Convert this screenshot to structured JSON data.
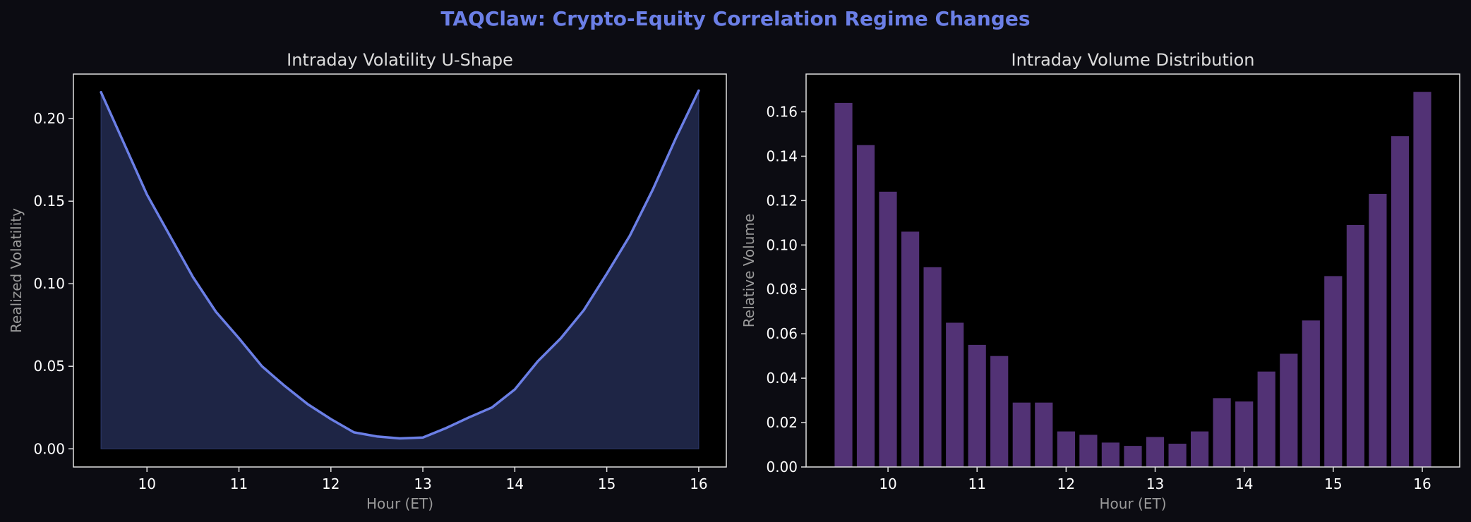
{
  "title": "TAQClaw: Crypto-Equity Correlation Regime Changes",
  "colors": {
    "figure_bg": "#0c0c12",
    "axes_bg": "#000000",
    "spine": "#e0e0e0",
    "title_accent": "#6b7fe6",
    "line": "#6b7fe6",
    "fill": "#1e2545",
    "bar": "#523275"
  },
  "chart_data": [
    {
      "type": "area",
      "title": "Intraday Volatility U-Shape",
      "xlabel": "Hour (ET)",
      "ylabel": "Realized Volatility",
      "xlim": [
        9.2,
        16.3
      ],
      "ylim": [
        -0.011,
        0.227
      ],
      "xticks": [
        10,
        11,
        12,
        13,
        14,
        15,
        16
      ],
      "yticks": [
        0.0,
        0.05,
        0.1,
        0.15,
        0.2
      ],
      "x": [
        9.5,
        9.75,
        10.0,
        10.25,
        10.5,
        10.75,
        11.0,
        11.25,
        11.5,
        11.75,
        12.0,
        12.25,
        12.5,
        12.75,
        13.0,
        13.25,
        13.5,
        13.75,
        14.0,
        14.25,
        14.5,
        14.75,
        15.0,
        15.25,
        15.5,
        15.75,
        16.0
      ],
      "values": [
        0.216,
        0.185,
        0.154,
        0.129,
        0.104,
        0.083,
        0.067,
        0.05,
        0.038,
        0.027,
        0.018,
        0.01,
        0.0075,
        0.0063,
        0.0068,
        0.0125,
        0.019,
        0.025,
        0.036,
        0.053,
        0.067,
        0.084,
        0.106,
        0.129,
        0.157,
        0.188,
        0.217
      ]
    },
    {
      "type": "bar",
      "title": "Intraday Volume Distribution",
      "xlabel": "Hour (ET)",
      "ylabel": "Relative Volume",
      "xlim": [
        9.08,
        16.42
      ],
      "ylim": [
        0.0,
        0.177
      ],
      "xticks": [
        10,
        11,
        12,
        13,
        14,
        15,
        16
      ],
      "yticks": [
        0.0,
        0.02,
        0.04,
        0.06,
        0.08,
        0.1,
        0.12,
        0.14,
        0.16
      ],
      "bar_width": 0.2,
      "x": [
        9.5,
        9.75,
        10.0,
        10.25,
        10.5,
        10.75,
        11.0,
        11.25,
        11.5,
        11.75,
        12.0,
        12.25,
        12.5,
        12.75,
        13.0,
        13.25,
        13.5,
        13.75,
        14.0,
        14.25,
        14.5,
        14.75,
        15.0,
        15.25,
        15.5,
        15.75,
        16.0
      ],
      "values": [
        0.164,
        0.145,
        0.124,
        0.106,
        0.09,
        0.065,
        0.055,
        0.05,
        0.029,
        0.029,
        0.016,
        0.0145,
        0.011,
        0.0095,
        0.0135,
        0.0105,
        0.016,
        0.031,
        0.0295,
        0.043,
        0.051,
        0.066,
        0.086,
        0.109,
        0.123,
        0.149,
        0.169
      ]
    }
  ]
}
